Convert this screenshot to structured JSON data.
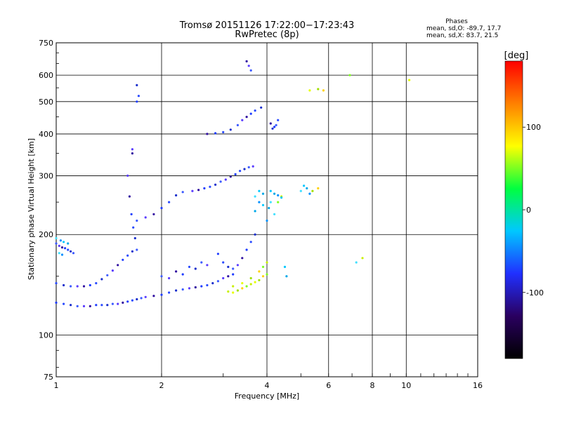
{
  "chart_data": {
    "type": "scatter",
    "title": "Tromsø 20151126 17:22:00−17:23:43",
    "subtitle": "RwPretec (8p)",
    "xlabel": "Frequency [MHz]",
    "ylabel": "Stationary phase Virtual Height [km]",
    "x_scale": "log",
    "y_scale": "log",
    "xlim": [
      1,
      16
    ],
    "ylim": [
      75,
      750
    ],
    "x_ticks": [
      "1",
      "2",
      "4",
      "6",
      "8",
      "10",
      "16"
    ],
    "y_ticks": [
      "750",
      "600",
      "500",
      "400",
      "300",
      "200",
      "100",
      "75"
    ],
    "grid": true,
    "info": {
      "heading": "Phases",
      "line1": "mean, sd,O: -89.7, 17.7",
      "line2": "mean, sd,X: 83.7, 21.5"
    },
    "colorbar": {
      "label": "[deg]",
      "min": -180,
      "max": 180,
      "ticks": [
        "100",
        "0",
        "-100"
      ],
      "stops": [
        "#000000",
        "#2a0060",
        "#2030ff",
        "#00c8ff",
        "#00ff40",
        "#ffff00",
        "#ff8000",
        "#ff0000"
      ]
    },
    "series": [
      {
        "values": [
          [
            1.0,
            125
          ],
          [
            1.05,
            124
          ],
          [
            1.1,
            123
          ],
          [
            1.15,
            122
          ],
          [
            1.2,
            122
          ],
          [
            1.25,
            122
          ],
          [
            1.3,
            123
          ],
          [
            1.35,
            123
          ],
          [
            1.4,
            123
          ],
          [
            1.45,
            124
          ],
          [
            1.5,
            124
          ],
          [
            1.55,
            125
          ],
          [
            1.6,
            126
          ],
          [
            1.65,
            127
          ],
          [
            1.7,
            128
          ],
          [
            1.75,
            129
          ],
          [
            1.8,
            130
          ],
          [
            1.9,
            131
          ],
          [
            2.0,
            132
          ],
          [
            2.1,
            134
          ],
          [
            2.2,
            136
          ],
          [
            2.3,
            137
          ],
          [
            2.4,
            138
          ],
          [
            2.5,
            139
          ],
          [
            2.6,
            140
          ],
          [
            2.7,
            141
          ],
          [
            2.8,
            143
          ],
          [
            2.9,
            145
          ],
          [
            3.0,
            148
          ],
          [
            3.1,
            150
          ],
          [
            3.2,
            152
          ],
          [
            1.0,
            143
          ],
          [
            1.05,
            141
          ],
          [
            1.1,
            140
          ],
          [
            1.15,
            140
          ],
          [
            1.2,
            140
          ],
          [
            1.25,
            141
          ],
          [
            1.3,
            143
          ],
          [
            1.35,
            147
          ],
          [
            1.4,
            151
          ],
          [
            1.45,
            156
          ],
          [
            1.5,
            162
          ],
          [
            1.55,
            168
          ],
          [
            1.6,
            173
          ],
          [
            1.65,
            178
          ],
          [
            1.0,
            188
          ],
          [
            1.02,
            185
          ],
          [
            1.04,
            183
          ],
          [
            1.06,
            182
          ],
          [
            1.08,
            180
          ],
          [
            1.1,
            178
          ],
          [
            1.12,
            176
          ],
          [
            1.6,
            300
          ],
          [
            1.62,
            260
          ],
          [
            1.64,
            230
          ],
          [
            1.66,
            210
          ],
          [
            1.68,
            195
          ],
          [
            1.7,
            180
          ],
          [
            1.65,
            360
          ],
          [
            1.65,
            350
          ],
          [
            1.7,
            500
          ],
          [
            1.72,
            520
          ],
          [
            1.7,
            560
          ],
          [
            1.7,
            220
          ],
          [
            1.8,
            225
          ],
          [
            1.9,
            230
          ],
          [
            2.0,
            240
          ],
          [
            2.1,
            250
          ],
          [
            2.2,
            262
          ],
          [
            2.3,
            268
          ],
          [
            2.45,
            270
          ],
          [
            2.55,
            272
          ],
          [
            2.65,
            275
          ],
          [
            2.75,
            278
          ],
          [
            2.85,
            282
          ],
          [
            2.95,
            288
          ],
          [
            3.05,
            292
          ],
          [
            3.15,
            298
          ],
          [
            3.25,
            303
          ],
          [
            3.35,
            310
          ],
          [
            3.45,
            314
          ],
          [
            3.55,
            318
          ],
          [
            3.65,
            320
          ],
          [
            2.7,
            400
          ],
          [
            2.85,
            402
          ],
          [
            3.0,
            405
          ],
          [
            3.15,
            412
          ],
          [
            3.3,
            425
          ],
          [
            3.4,
            440
          ],
          [
            3.5,
            450
          ],
          [
            3.6,
            460
          ],
          [
            3.7,
            470
          ],
          [
            3.85,
            480
          ],
          [
            3.6,
            620
          ],
          [
            3.55,
            640
          ],
          [
            3.5,
            660
          ],
          [
            2.9,
            175
          ],
          [
            3.0,
            165
          ],
          [
            3.1,
            160
          ],
          [
            3.2,
            158
          ],
          [
            3.3,
            162
          ],
          [
            3.4,
            170
          ],
          [
            3.5,
            180
          ],
          [
            3.6,
            190
          ],
          [
            3.7,
            200
          ],
          [
            2.0,
            150
          ],
          [
            2.1,
            148
          ],
          [
            2.2,
            155
          ],
          [
            2.3,
            152
          ],
          [
            2.4,
            160
          ],
          [
            2.5,
            158
          ],
          [
            2.6,
            165
          ],
          [
            2.7,
            162
          ],
          [
            4.1,
            430
          ],
          [
            4.2,
            420
          ],
          [
            4.3,
            440
          ],
          [
            4.15,
            415
          ],
          [
            4.25,
            425
          ]
        ]
      },
      {
        "values": [
          [
            3.1,
            135
          ],
          [
            3.2,
            134
          ],
          [
            3.3,
            136
          ],
          [
            3.4,
            138
          ],
          [
            3.5,
            140
          ],
          [
            3.6,
            142
          ],
          [
            3.7,
            144
          ],
          [
            3.8,
            146
          ],
          [
            3.9,
            150
          ],
          [
            4.0,
            152
          ],
          [
            3.2,
            140
          ],
          [
            3.4,
            143
          ],
          [
            3.6,
            148
          ],
          [
            3.8,
            155
          ],
          [
            3.9,
            160
          ],
          [
            4.0,
            165
          ],
          [
            5.3,
            540
          ],
          [
            5.6,
            545
          ],
          [
            5.8,
            540
          ],
          [
            6.9,
            600
          ],
          [
            7.5,
            170
          ],
          [
            10.2,
            580
          ],
          [
            5.4,
            270
          ],
          [
            5.6,
            275
          ],
          [
            4.3,
            250
          ],
          [
            4.4,
            260
          ]
        ]
      },
      {
        "values": [
          [
            4.1,
            270
          ],
          [
            4.2,
            265
          ],
          [
            4.1,
            250
          ],
          [
            4.3,
            262
          ],
          [
            4.4,
            258
          ],
          [
            4.05,
            240
          ],
          [
            4.2,
            230
          ],
          [
            4.0,
            220
          ],
          [
            3.8,
            270
          ],
          [
            3.9,
            265
          ],
          [
            3.7,
            260
          ],
          [
            3.8,
            250
          ],
          [
            3.9,
            245
          ],
          [
            3.7,
            235
          ],
          [
            1.0,
            195
          ],
          [
            1.03,
            192
          ],
          [
            1.05,
            190
          ],
          [
            1.08,
            188
          ],
          [
            1.02,
            176
          ],
          [
            1.04,
            174
          ],
          [
            5.1,
            280
          ],
          [
            5.2,
            275
          ],
          [
            5.0,
            270
          ],
          [
            5.3,
            265
          ],
          [
            4.5,
            160
          ],
          [
            4.55,
            150
          ],
          [
            7.2,
            165
          ]
        ]
      }
    ]
  }
}
